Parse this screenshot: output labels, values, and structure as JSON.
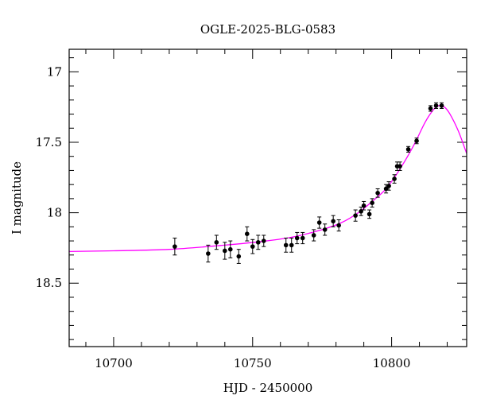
{
  "chart_data": {
    "type": "scatter",
    "title": "OGLE-2025-BLG-0583",
    "xlabel": "HJD - 2450000",
    "ylabel": "I magnitude",
    "xlim": [
      10684,
      10827
    ],
    "ylim": [
      18.95,
      16.84
    ],
    "y_inverted": true,
    "x_ticks": [
      10700,
      10750,
      10800
    ],
    "y_ticks": [
      17,
      17.5,
      18,
      18.5
    ],
    "x_minor_step": 10,
    "y_minor_step": 0.1,
    "grid": false,
    "points_color": "#000000",
    "model_color": "#ff00ff",
    "series": [
      {
        "kind": "points",
        "points": [
          {
            "x": 10722.0,
            "y": 18.24,
            "err": 0.06
          },
          {
            "x": 10734.0,
            "y": 18.29,
            "err": 0.06
          },
          {
            "x": 10737.0,
            "y": 18.21,
            "err": 0.05
          },
          {
            "x": 10740.0,
            "y": 18.27,
            "err": 0.06
          },
          {
            "x": 10742.0,
            "y": 18.26,
            "err": 0.06
          },
          {
            "x": 10745.0,
            "y": 18.31,
            "err": 0.05
          },
          {
            "x": 10748.0,
            "y": 18.15,
            "err": 0.05
          },
          {
            "x": 10750.0,
            "y": 18.24,
            "err": 0.05
          },
          {
            "x": 10752.0,
            "y": 18.21,
            "err": 0.05
          },
          {
            "x": 10754.0,
            "y": 18.2,
            "err": 0.04
          },
          {
            "x": 10762.0,
            "y": 18.23,
            "err": 0.05
          },
          {
            "x": 10764.0,
            "y": 18.23,
            "err": 0.05
          },
          {
            "x": 10766.0,
            "y": 18.18,
            "err": 0.04
          },
          {
            "x": 10768.0,
            "y": 18.18,
            "err": 0.04
          },
          {
            "x": 10772.0,
            "y": 18.16,
            "err": 0.04
          },
          {
            "x": 10774.0,
            "y": 18.07,
            "err": 0.04
          },
          {
            "x": 10776.0,
            "y": 18.12,
            "err": 0.04
          },
          {
            "x": 10779.0,
            "y": 18.06,
            "err": 0.04
          },
          {
            "x": 10781.0,
            "y": 18.09,
            "err": 0.04
          },
          {
            "x": 10787.0,
            "y": 18.02,
            "err": 0.04
          },
          {
            "x": 10789.0,
            "y": 17.99,
            "err": 0.03
          },
          {
            "x": 10790.0,
            "y": 17.95,
            "err": 0.03
          },
          {
            "x": 10792.0,
            "y": 18.01,
            "err": 0.03
          },
          {
            "x": 10793.0,
            "y": 17.93,
            "err": 0.03
          },
          {
            "x": 10795.0,
            "y": 17.86,
            "err": 0.03
          },
          {
            "x": 10798.0,
            "y": 17.83,
            "err": 0.03
          },
          {
            "x": 10799.0,
            "y": 17.81,
            "err": 0.03
          },
          {
            "x": 10801.0,
            "y": 17.76,
            "err": 0.03
          },
          {
            "x": 10802.0,
            "y": 17.67,
            "err": 0.03
          },
          {
            "x": 10803.0,
            "y": 17.67,
            "err": 0.03
          },
          {
            "x": 10806.0,
            "y": 17.55,
            "err": 0.02
          },
          {
            "x": 10809.0,
            "y": 17.49,
            "err": 0.02
          },
          {
            "x": 10814.0,
            "y": 17.26,
            "err": 0.02
          },
          {
            "x": 10816.0,
            "y": 17.24,
            "err": 0.02
          },
          {
            "x": 10818.0,
            "y": 17.24,
            "err": 0.02
          }
        ]
      },
      {
        "kind": "model",
        "points": [
          {
            "x": 10684,
            "y": 18.275
          },
          {
            "x": 10700,
            "y": 18.27
          },
          {
            "x": 10720,
            "y": 18.26
          },
          {
            "x": 10740,
            "y": 18.23
          },
          {
            "x": 10755,
            "y": 18.2
          },
          {
            "x": 10765,
            "y": 18.17
          },
          {
            "x": 10775,
            "y": 18.12
          },
          {
            "x": 10782,
            "y": 18.07
          },
          {
            "x": 10788,
            "y": 18.0
          },
          {
            "x": 10793,
            "y": 17.92
          },
          {
            "x": 10798,
            "y": 17.83
          },
          {
            "x": 10803,
            "y": 17.69
          },
          {
            "x": 10808,
            "y": 17.52
          },
          {
            "x": 10812,
            "y": 17.36
          },
          {
            "x": 10815,
            "y": 17.27
          },
          {
            "x": 10817,
            "y": 17.24
          },
          {
            "x": 10819,
            "y": 17.25
          },
          {
            "x": 10821,
            "y": 17.3
          },
          {
            "x": 10824,
            "y": 17.42
          },
          {
            "x": 10827,
            "y": 17.58
          }
        ]
      }
    ]
  }
}
